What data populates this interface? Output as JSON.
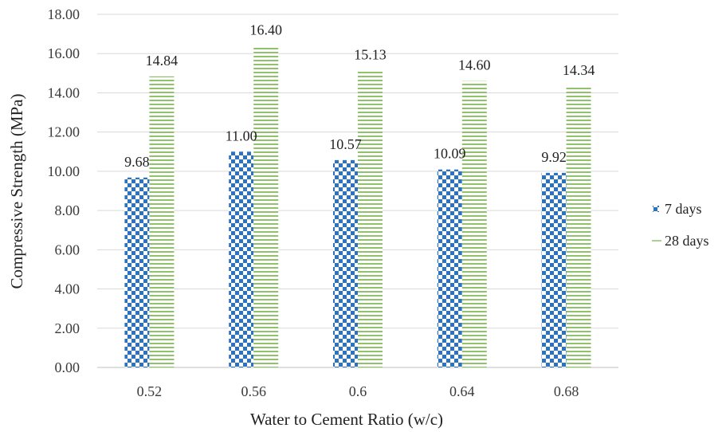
{
  "chart_data": {
    "type": "bar",
    "title": "",
    "xlabel": "Water to Cement Ratio (w/c)",
    "ylabel": "Compressive Strength (MPa)",
    "categories": [
      "0.52",
      "0.56",
      "0.6",
      "0.64",
      "0.68"
    ],
    "series": [
      {
        "name": "7 days",
        "values": [
          9.68,
          11.0,
          10.57,
          10.09,
          9.92
        ],
        "labels": [
          "9.68",
          "11.00",
          "10.57",
          "10.09",
          "9.92"
        ],
        "color": "#2b73c2",
        "pattern": "checkerboard"
      },
      {
        "name": "28 days",
        "values": [
          14.84,
          16.4,
          15.13,
          14.6,
          14.34
        ],
        "labels": [
          "14.84",
          "16.40",
          "15.13",
          "14.60",
          "14.34"
        ],
        "color": "#8fc26a",
        "pattern": "horizontal-stripes"
      }
    ],
    "ylim": [
      0,
      18
    ],
    "yticks": [
      "0.00",
      "2.00",
      "4.00",
      "6.00",
      "8.00",
      "10.00",
      "12.00",
      "14.00",
      "16.00",
      "18.00"
    ],
    "grid": true,
    "legend": "right"
  }
}
